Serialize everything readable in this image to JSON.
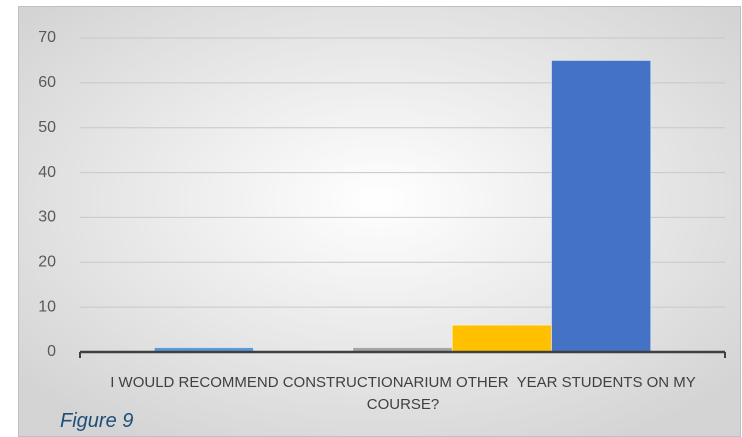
{
  "chart_data": {
    "type": "bar",
    "categories": [
      "I WOULD RECOMMEND CONSTRUCTIONARIUM OTHER  YEAR STUDENTS ON MY COURSE?"
    ],
    "series": [
      {
        "color": "#5b9bd5",
        "values": [
          1
        ]
      },
      {
        "color": "#ed7d31",
        "values": [
          0
        ]
      },
      {
        "color": "#a5a5a5",
        "values": [
          1
        ]
      },
      {
        "color": "#ffc000",
        "values": [
          6
        ]
      },
      {
        "color": "#4472c4",
        "values": [
          65
        ]
      }
    ],
    "ylim": [
      0,
      70
    ],
    "yticks": [
      0,
      10,
      20,
      30,
      40,
      50,
      60,
      70
    ],
    "grid": true,
    "caption": "Figure 9"
  }
}
